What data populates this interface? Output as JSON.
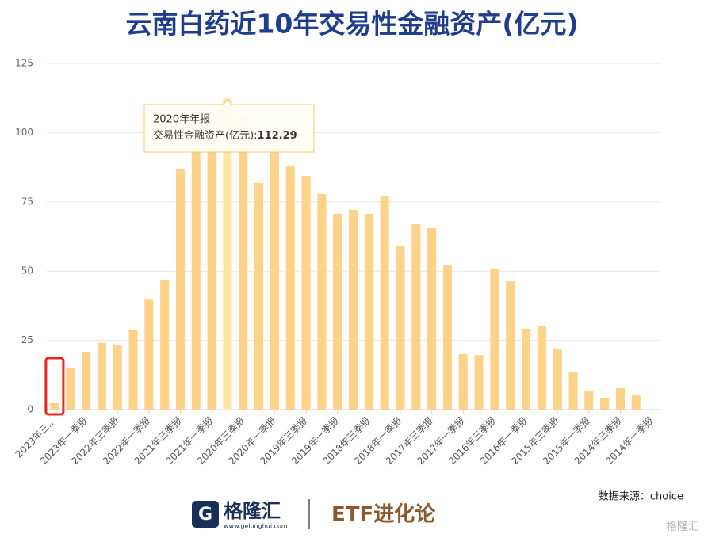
{
  "chart_data": {
    "type": "bar",
    "title": "云南白药近10年交易性金融资产(亿元)",
    "categories": [
      "2023年三…",
      null,
      "2023年一季报",
      null,
      "2022年三季报",
      null,
      "2022年一季报",
      null,
      "2021年三季报",
      null,
      "2021年一季报",
      null,
      "2020年三季报",
      null,
      "2020年一季报",
      null,
      "2019年三季报",
      null,
      "2019年一季报",
      null,
      "2018年三季报",
      null,
      "2018年一季报",
      null,
      "2017年三季报",
      null,
      "2017年一季报",
      null,
      "2016年三季报",
      null,
      "2016年一季报",
      null,
      "2015年三季报",
      null,
      "2015年一季报",
      null,
      "2014年三季报",
      null,
      "2014年一季报"
    ],
    "values": [
      2.5,
      15.2,
      20.9,
      24,
      23.2,
      28.6,
      40,
      46.9,
      87,
      100,
      104,
      112.29,
      106,
      81.8,
      96,
      87.8,
      84.4,
      77.8,
      70.7,
      72.1,
      70.7,
      77.2,
      58.9,
      66.9,
      65.5,
      52,
      20,
      19.7,
      50.9,
      46.3,
      29.2,
      30.3,
      22,
      13.4,
      6.6,
      4.3,
      7.7,
      5.4,
      null
    ],
    "color": "#fdd38a",
    "highlight_color": "#fde6a6",
    "highlight_index": 11,
    "ylim": [
      0,
      125
    ],
    "yticks": [
      0,
      25,
      50,
      75,
      100,
      125
    ],
    "grid": true,
    "tooltip": {
      "title": "2020年年报",
      "label": "交易性金融资产(亿元):"
    },
    "source": "数据来源：choice"
  },
  "footer": {
    "brand": "格隆汇",
    "url": "www.gelonghui.com",
    "partner": "ETF进化论",
    "watermark": "格隆汇"
  }
}
